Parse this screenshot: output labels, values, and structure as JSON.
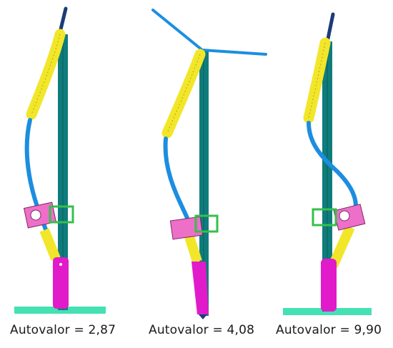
{
  "panels": [
    {
      "caption": "Autovalor = 2,87"
    },
    {
      "caption": "Autovalor = 4,08"
    },
    {
      "caption": "Autovalor = 9,90"
    }
  ],
  "colors": {
    "mast": "#0f7c7c",
    "yellow": "#f2e62a",
    "blue_cable": "#1c8ee0",
    "navy": "#1c3b78",
    "pink": "#ee6fc8",
    "magenta": "#e11bc9",
    "green": "#34c04a",
    "base": "#44e1b4"
  }
}
